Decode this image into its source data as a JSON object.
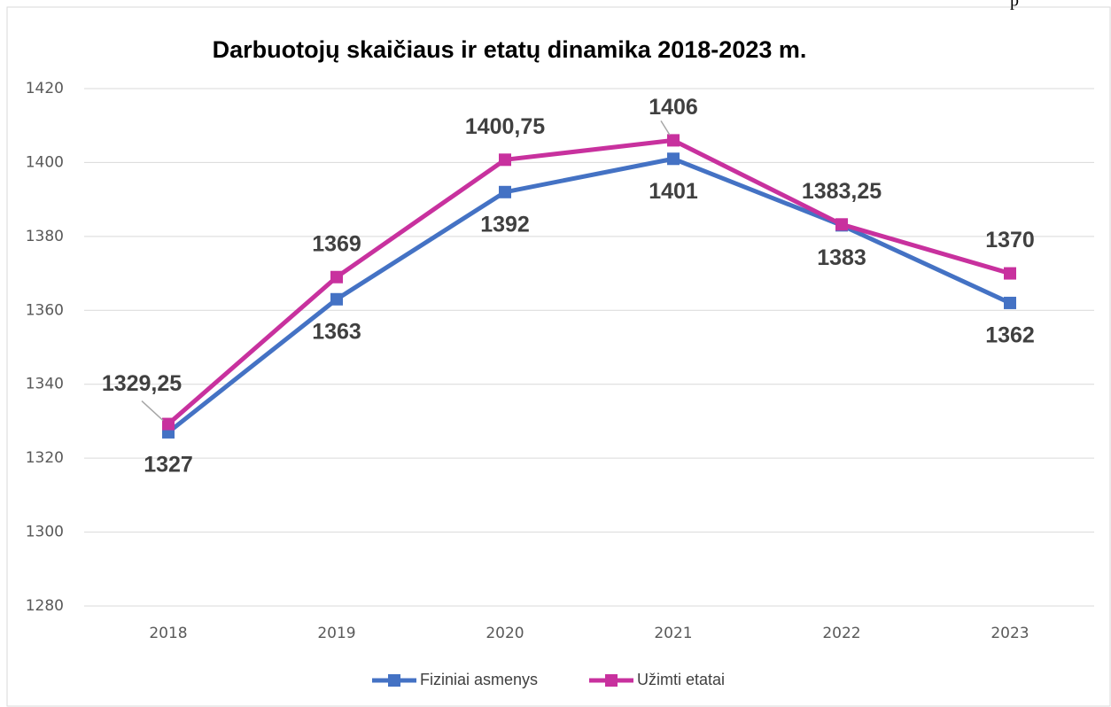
{
  "corner_text": "p",
  "chart_data": {
    "type": "line",
    "title": "Darbuotojų skaičiaus ir etatų dinamika 2018-2023 m.",
    "categories": [
      "2018",
      "2019",
      "2020",
      "2021",
      "2022",
      "2023"
    ],
    "series": [
      {
        "name": "Fiziniai asmenys",
        "color": "#4472c4",
        "values": [
          1327,
          1363,
          1392,
          1401,
          1383,
          1362
        ]
      },
      {
        "name": "Užimti etatai",
        "color": "#c8319e",
        "values": [
          1329.25,
          1369,
          1400.75,
          1406,
          1383.25,
          1370
        ],
        "value_labels": [
          "1329,25",
          "1369",
          "1400,75",
          "1406",
          "1383,25",
          "1370"
        ]
      }
    ],
    "ylim": [
      1280,
      1420
    ],
    "yticks": [
      1280,
      1300,
      1320,
      1340,
      1360,
      1380,
      1400,
      1420
    ],
    "grid": true,
    "legend": "bottom"
  }
}
